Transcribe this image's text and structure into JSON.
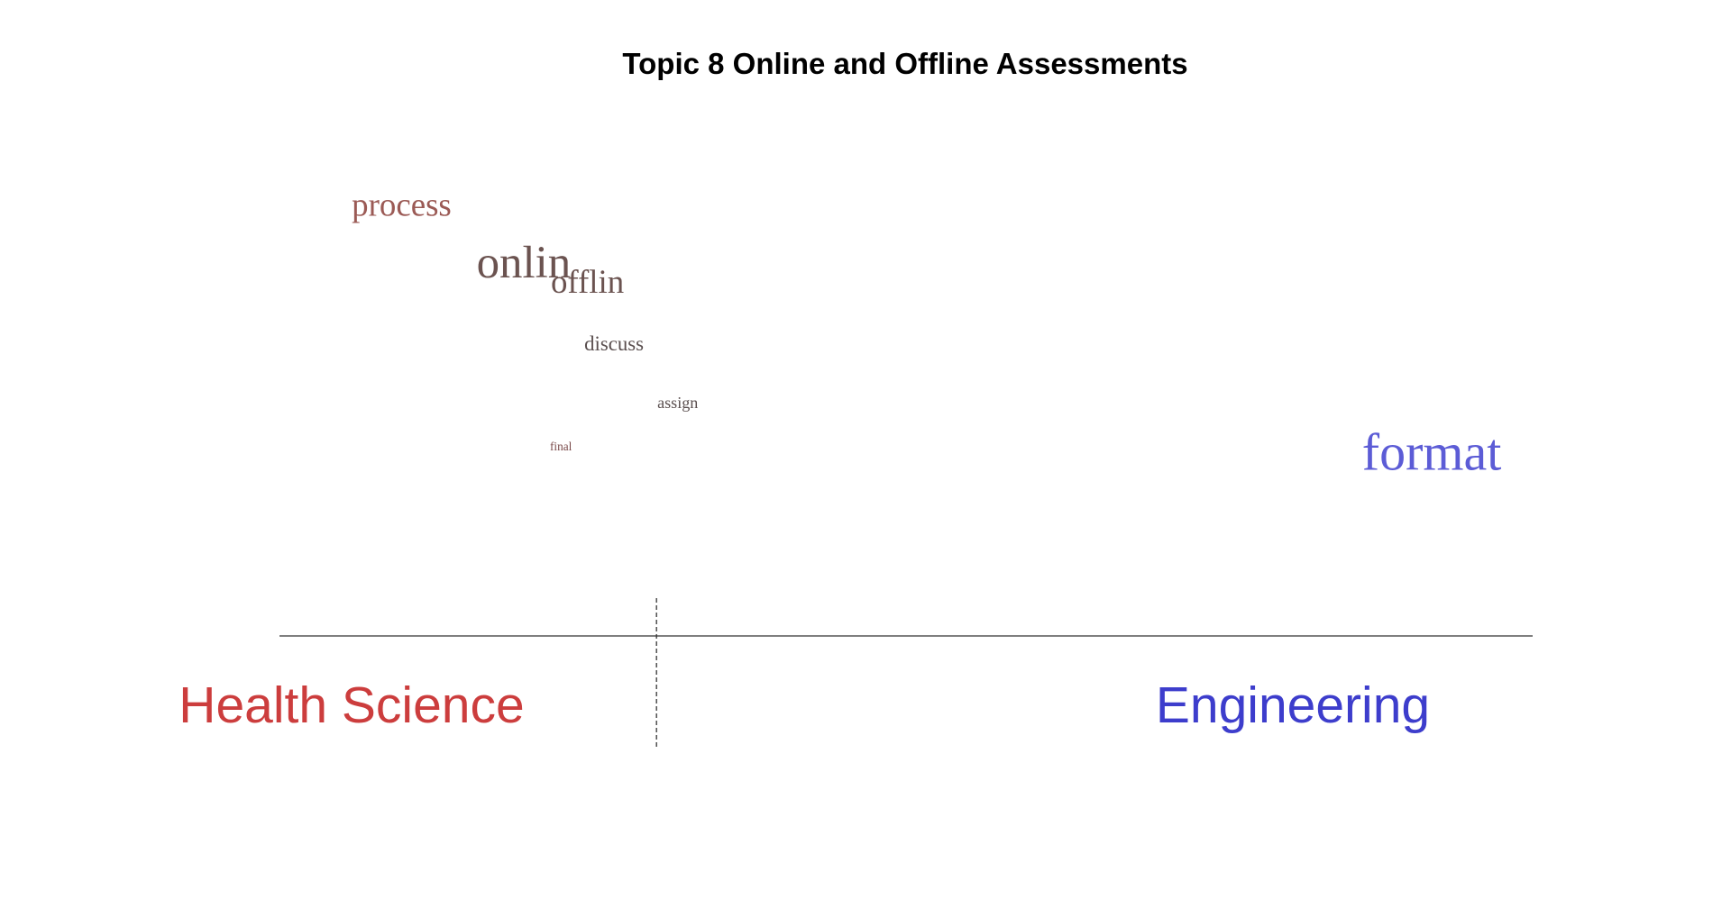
{
  "chart_data": {
    "type": "scatter",
    "title": "Topic 8 Online and Offline Assessments",
    "groups": [
      {
        "name": "Health Science",
        "color": "#cc3d3d"
      },
      {
        "name": "Engineering",
        "color": "#3d3dcc"
      }
    ],
    "words": [
      {
        "label": "process",
        "x": -0.95,
        "y": 0.79,
        "weight": 0.55,
        "color": "#9b5a55"
      },
      {
        "label": "onlin",
        "x": -0.72,
        "y": 0.63,
        "weight": 0.85,
        "color": "#6b5350"
      },
      {
        "label": "offlin",
        "x": -0.6,
        "y": 0.59,
        "weight": 0.55,
        "color": "#6b5350"
      },
      {
        "label": "discuss",
        "x": -0.55,
        "y": 0.44,
        "weight": 0.25,
        "color": "#5a4f4f"
      },
      {
        "label": "assign",
        "x": -0.43,
        "y": 0.29,
        "weight": 0.15,
        "color": "#5a4f4f"
      },
      {
        "label": "final",
        "x": -0.65,
        "y": 0.18,
        "weight": 0.05,
        "color": "#7a4a4a"
      },
      {
        "label": "format",
        "x": 0.99,
        "y": 0.13,
        "weight": 1.0,
        "color": "#5c5cd6"
      }
    ],
    "divider_x": -0.47,
    "xlim": [
      -1.18,
      1.18
    ],
    "ylim": [
      -0.3,
      1.0
    ]
  }
}
